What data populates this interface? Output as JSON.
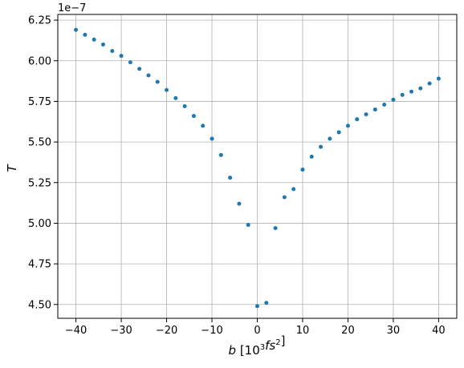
{
  "chart_data": {
    "type": "scatter",
    "xlabel": "b [10³fs²]",
    "ylabel": "T",
    "y_offset_text": "1e−7",
    "xlim": [
      -44,
      44
    ],
    "ylim": [
      4.415,
      6.285
    ],
    "x_ticks": [
      -40,
      -30,
      -20,
      -10,
      0,
      10,
      20,
      30,
      40
    ],
    "y_ticks": [
      4.5,
      4.75,
      5.0,
      5.25,
      5.5,
      5.75,
      6.0,
      6.25
    ],
    "x_tick_labels": [
      "−40",
      "−30",
      "−20",
      "−10",
      "0",
      "10",
      "20",
      "30",
      "40"
    ],
    "y_tick_labels": [
      "4.50",
      "4.75",
      "5.00",
      "5.25",
      "5.50",
      "5.75",
      "6.00",
      "6.25"
    ],
    "grid": true,
    "marker_color": "#1f77b4",
    "points": {
      "x": [
        -40,
        -38,
        -36,
        -34,
        -32,
        -30,
        -28,
        -26,
        -24,
        -22,
        -20,
        -18,
        -16,
        -14,
        -12,
        -10,
        -8,
        -6,
        -4,
        -2,
        0,
        2,
        4,
        6,
        8,
        10,
        12,
        14,
        16,
        18,
        20,
        22,
        24,
        26,
        28,
        30,
        32,
        34,
        36,
        38,
        40
      ],
      "y": [
        6.19,
        6.16,
        6.13,
        6.1,
        6.06,
        6.03,
        5.99,
        5.95,
        5.91,
        5.87,
        5.82,
        5.77,
        5.72,
        5.66,
        5.6,
        5.52,
        5.42,
        5.28,
        5.12,
        4.99,
        4.49,
        4.51,
        4.97,
        5.16,
        5.21,
        5.33,
        5.41,
        5.47,
        5.52,
        5.56,
        5.6,
        5.64,
        5.67,
        5.7,
        5.73,
        5.76,
        5.79,
        5.81,
        5.83,
        5.86,
        5.89
      ]
    }
  }
}
